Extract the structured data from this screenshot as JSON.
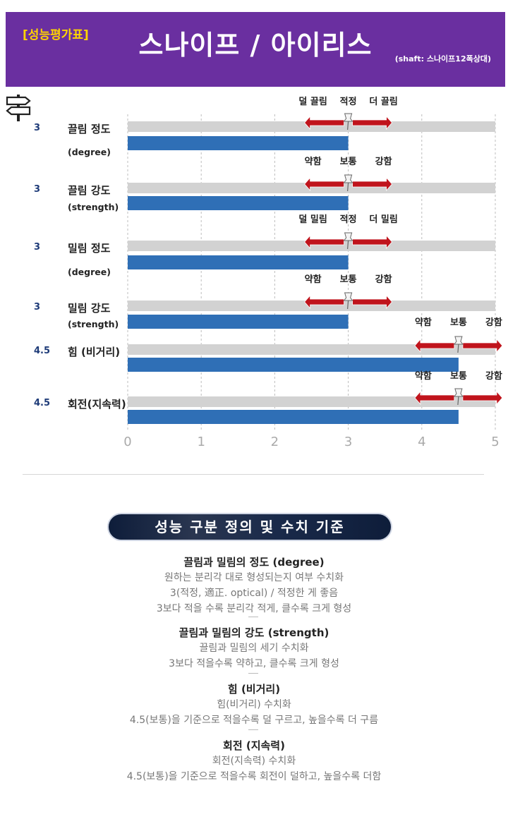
{
  "header": {
    "badge": "[성능평가표]",
    "title": "스나이프 / 아이리스",
    "shaft": "(shaft: 스나이프12폭상대)"
  },
  "colors": {
    "header_bg": "#6a2fa0",
    "bar": "#2f6fb6",
    "track": "#d2d2d2",
    "arrow": "#c0141c",
    "badge": "#ffd400"
  },
  "chart_data": {
    "type": "bar",
    "orientation": "horizontal",
    "xlim": [
      0,
      5
    ],
    "xticks": [
      "0",
      "1",
      "2",
      "3",
      "4",
      "5"
    ],
    "grid": true,
    "rows": [
      {
        "value": 3,
        "value_label": "3",
        "name": "끌림 정도",
        "sub": "(degree)",
        "scale": [
          "덜 끌림",
          "적정",
          "더 끌림"
        ],
        "center": 3
      },
      {
        "value": 3,
        "value_label": "3",
        "name": "끌림 강도",
        "sub": "(strength)",
        "scale": [
          "약함",
          "보통",
          "강함"
        ],
        "center": 3
      },
      {
        "value": 3,
        "value_label": "3",
        "name": "밀림 정도",
        "sub": "(degree)",
        "scale": [
          "덜 밀림",
          "적정",
          "더 밀림"
        ],
        "center": 3
      },
      {
        "value": 3,
        "value_label": "3",
        "name": "밀림 강도",
        "sub": "(strength)",
        "scale": [
          "약함",
          "보통",
          "강함"
        ],
        "center": 3
      },
      {
        "value": 4.5,
        "value_label": "4.5",
        "name": "힘 (비거리)",
        "sub": "",
        "scale": [
          "약함",
          "보통",
          "강함"
        ],
        "center": 4.5
      },
      {
        "value": 4.5,
        "value_label": "4.5",
        "name": "회전(지속력)",
        "sub": "",
        "scale": [
          "약함",
          "보통",
          "강함"
        ],
        "center": 4.5
      }
    ]
  },
  "definitions": {
    "title": "성능 구분 정의 및 수치 기준",
    "items": [
      {
        "heading": "끌림과 밀림의 정도 (degree)",
        "lines": [
          "원하는 분리각 대로 형성되는지 여부 수치화",
          "3(적정, 適正. optical) / 적정한 게 좋음",
          "3보다 적을 수록 분리각 적게, 클수록 크게 형성"
        ]
      },
      {
        "heading": "끌림과 밀림의 강도 (strength)",
        "lines": [
          "끌림과 밀림의 세기 수치화",
          "3보다 적을수록 약하고, 클수록 크게 형성"
        ]
      },
      {
        "heading": "힘 (비거리)",
        "lines": [
          "힘(비거리) 수치화",
          "4.5(보통)을 기준으로 적을수록 덜 구르고, 높을수록 더 구름"
        ]
      },
      {
        "heading": "회전 (지속력)",
        "lines": [
          "회전(지속력) 수치화",
          "4.5(보통)을 기준으로 적을수록 회전이 덜하고, 높을수록 더함"
        ]
      }
    ]
  }
}
